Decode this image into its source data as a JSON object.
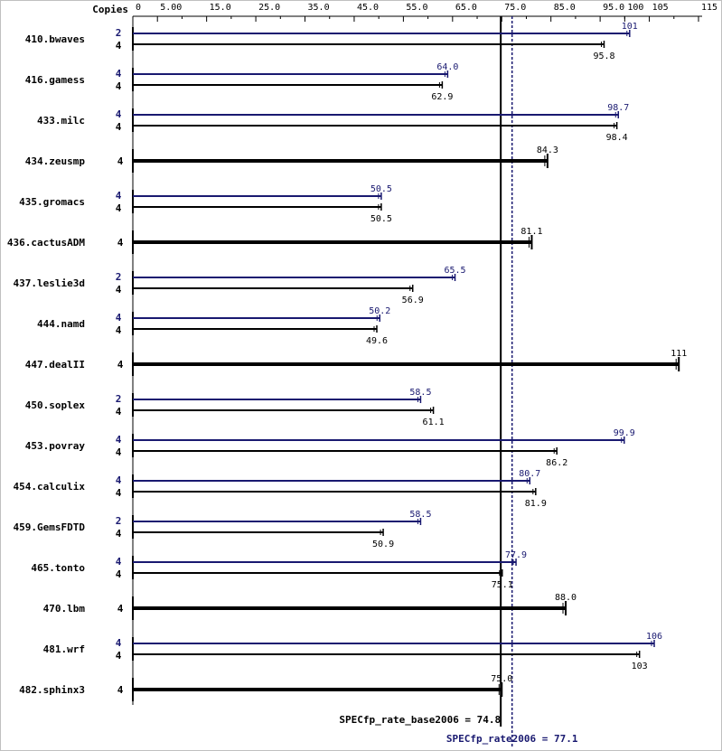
{
  "chart_data": {
    "type": "bar",
    "copies_header": "Copies",
    "x_ticks": [
      0,
      5.0,
      15.0,
      25.0,
      35.0,
      45.0,
      55.0,
      65.0,
      75.0,
      85.0,
      95.0,
      100,
      105,
      115
    ],
    "x_tick_labels": [
      "0",
      "5.00",
      "15.0",
      "25.0",
      "35.0",
      "45.0",
      "55.0",
      "65.0",
      "75.0",
      "85.0",
      "95.0",
      "100",
      "105",
      "115"
    ],
    "xlim": [
      0,
      115
    ],
    "series": [
      {
        "key": "peak",
        "color": "#191970"
      },
      {
        "key": "base",
        "color": "#000000"
      }
    ],
    "benchmarks": [
      {
        "name": "410.bwaves",
        "peak": {
          "copies": "2",
          "value": 101,
          "label": "101"
        },
        "base": {
          "copies": "4",
          "value": 95.8,
          "label": "95.8"
        }
      },
      {
        "name": "416.gamess",
        "peak": {
          "copies": "4",
          "value": 64.0,
          "label": "64.0"
        },
        "base": {
          "copies": "4",
          "value": 62.9,
          "label": "62.9"
        }
      },
      {
        "name": "433.milc",
        "peak": {
          "copies": "4",
          "value": 98.7,
          "label": "98.7"
        },
        "base": {
          "copies": "4",
          "value": 98.4,
          "label": "98.4"
        }
      },
      {
        "name": "434.zeusmp",
        "single": {
          "copies": "4",
          "value": 84.3,
          "label": "84.3"
        }
      },
      {
        "name": "435.gromacs",
        "peak": {
          "copies": "4",
          "value": 50.5,
          "label": "50.5"
        },
        "base": {
          "copies": "4",
          "value": 50.5,
          "label": "50.5"
        }
      },
      {
        "name": "436.cactusADM",
        "single": {
          "copies": "4",
          "value": 81.1,
          "label": "81.1"
        }
      },
      {
        "name": "437.leslie3d",
        "peak": {
          "copies": "2",
          "value": 65.5,
          "label": "65.5"
        },
        "base": {
          "copies": "4",
          "value": 56.9,
          "label": "56.9"
        }
      },
      {
        "name": "444.namd",
        "peak": {
          "copies": "4",
          "value": 50.2,
          "label": "50.2"
        },
        "base": {
          "copies": "4",
          "value": 49.6,
          "label": "49.6"
        }
      },
      {
        "name": "447.dealII",
        "single": {
          "copies": "4",
          "value": 111,
          "label": "111"
        }
      },
      {
        "name": "450.soplex",
        "peak": {
          "copies": "2",
          "value": 58.5,
          "label": "58.5"
        },
        "base": {
          "copies": "4",
          "value": 61.1,
          "label": "61.1"
        }
      },
      {
        "name": "453.povray",
        "peak": {
          "copies": "4",
          "value": 99.9,
          "label": "99.9"
        },
        "base": {
          "copies": "4",
          "value": 86.2,
          "label": "86.2"
        }
      },
      {
        "name": "454.calculix",
        "peak": {
          "copies": "4",
          "value": 80.7,
          "label": "80.7"
        },
        "base": {
          "copies": "4",
          "value": 81.9,
          "label": "81.9"
        }
      },
      {
        "name": "459.GemsFDTD",
        "peak": {
          "copies": "2",
          "value": 58.5,
          "label": "58.5"
        },
        "base": {
          "copies": "4",
          "value": 50.9,
          "label": "50.9"
        }
      },
      {
        "name": "465.tonto",
        "peak": {
          "copies": "4",
          "value": 77.9,
          "label": "77.9"
        },
        "base": {
          "copies": "4",
          "value": 75.1,
          "label": "75.1"
        }
      },
      {
        "name": "470.lbm",
        "single": {
          "copies": "4",
          "value": 88.0,
          "label": "88.0"
        }
      },
      {
        "name": "481.wrf",
        "peak": {
          "copies": "4",
          "value": 106,
          "label": "106"
        },
        "base": {
          "copies": "4",
          "value": 103,
          "label": "103"
        }
      },
      {
        "name": "482.sphinx3",
        "single": {
          "copies": "4",
          "value": 75.0,
          "label": "75.0"
        }
      }
    ],
    "reference_lines": {
      "base": {
        "value": 74.8,
        "label": "SPECfp_rate_base2006 = 74.8"
      },
      "peak": {
        "value": 77.1,
        "label": "SPECfp_rate2006 = 77.1"
      }
    }
  }
}
